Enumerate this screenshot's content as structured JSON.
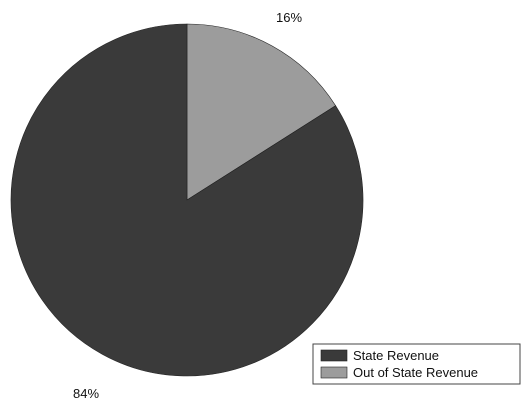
{
  "chart_data": {
    "type": "pie",
    "categories": [
      "State Revenue",
      "Out of State Revenue"
    ],
    "values": [
      84,
      16
    ],
    "labels": [
      "84%",
      "16%"
    ],
    "colors": [
      "#3a3a3a",
      "#9c9c9c"
    ],
    "legend_placement": "bottom-right",
    "start_angle": "12 o'clock, clockwise order: Out of State Revenue then State Revenue"
  }
}
